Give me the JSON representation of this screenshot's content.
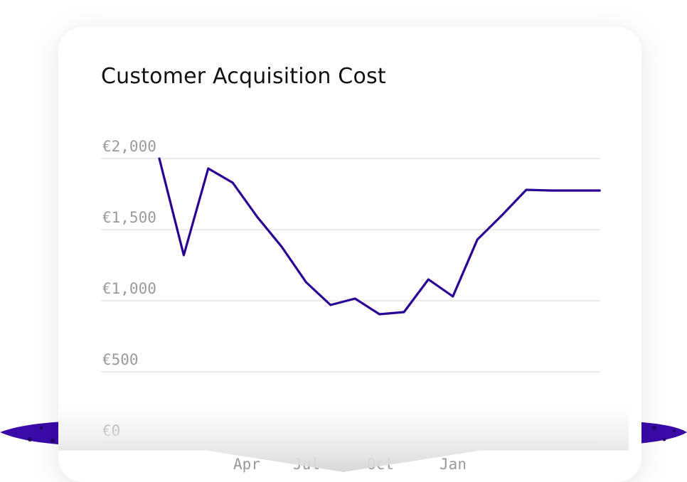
{
  "colors": {
    "line": "#2a0094",
    "accent_blob": "#3a0aa8",
    "tick_text": "#9a9a9a",
    "grid": "#e6e6e6",
    "title": "#111111"
  },
  "chart_data": {
    "type": "line",
    "title": "Customer Acquisition Cost",
    "xlabel": "",
    "ylabel": "",
    "ylim": [
      0,
      2000
    ],
    "grid": true,
    "y_ticks": [
      "€2,000",
      "€1,500",
      "€1,000",
      "€500",
      "€0"
    ],
    "x_ticks": [
      "Apr",
      "Jul",
      "Oct",
      "Jan"
    ],
    "series": [
      {
        "values": [
          2000,
          1320,
          1930,
          1830,
          1590,
          1380,
          1130,
          970,
          1015,
          905,
          920,
          1150,
          1030,
          1430,
          1600,
          1780,
          1775,
          1775,
          1775
        ]
      }
    ]
  }
}
